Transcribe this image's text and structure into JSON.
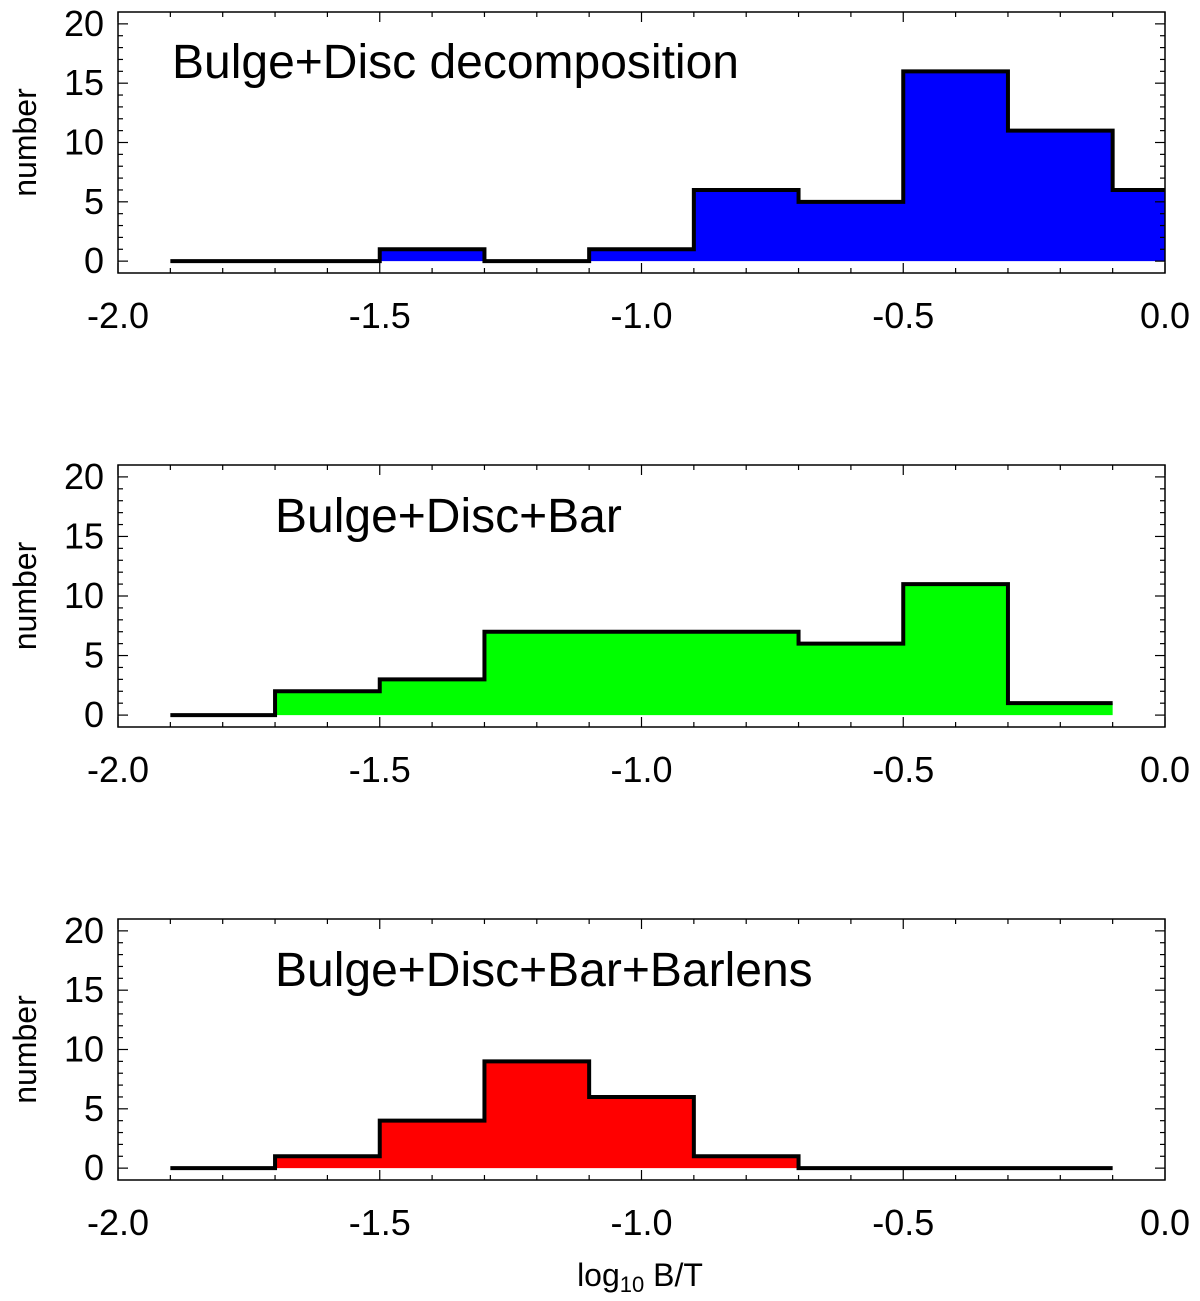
{
  "chart_data": [
    {
      "type": "histogram",
      "title": "Bulge+Disc decomposition",
      "ylabel": "number",
      "xlabel": "",
      "xlim": [
        -2.0,
        0.0
      ],
      "ylim": [
        -1,
        21
      ],
      "xticks": [
        "-2.0",
        "-1.5",
        "-1.0",
        "-0.5",
        "0.0"
      ],
      "yticks": [
        "0",
        "5",
        "10",
        "15",
        "20"
      ],
      "fill_color": "#0000ff",
      "bin_edges": [
        -1.9,
        -1.7,
        -1.5,
        -1.3,
        -1.1,
        -0.9,
        -0.7,
        -0.5,
        -0.3,
        -0.1,
        0.1
      ],
      "values": [
        0,
        0,
        1,
        0,
        1,
        6,
        5,
        16,
        11,
        6
      ]
    },
    {
      "type": "histogram",
      "title": "Bulge+Disc+Bar",
      "ylabel": "number",
      "xlabel": "",
      "xlim": [
        -2.0,
        0.0
      ],
      "ylim": [
        -1,
        21
      ],
      "xticks": [
        "-2.0",
        "-1.5",
        "-1.0",
        "-0.5",
        "0.0"
      ],
      "yticks": [
        "0",
        "5",
        "10",
        "15",
        "20"
      ],
      "fill_color": "#00ff00",
      "bin_edges": [
        -1.9,
        -1.7,
        -1.5,
        -1.3,
        -1.1,
        -0.9,
        -0.7,
        -0.5,
        -0.3,
        -0.1
      ],
      "values": [
        0,
        2,
        3,
        7,
        7,
        7,
        6,
        11,
        1
      ]
    },
    {
      "type": "histogram",
      "title": "Bulge+Disc+Bar+Barlens",
      "ylabel": "number",
      "xlabel": "log10 B/T",
      "xlim": [
        -2.0,
        0.0
      ],
      "ylim": [
        -1,
        21
      ],
      "xticks": [
        "-2.0",
        "-1.5",
        "-1.0",
        "-0.5",
        "0.0"
      ],
      "yticks": [
        "0",
        "5",
        "10",
        "15",
        "20"
      ],
      "fill_color": "#ff0000",
      "bin_edges": [
        -1.9,
        -1.7,
        -1.5,
        -1.3,
        -1.1,
        -0.9,
        -0.7,
        -0.5,
        -0.3,
        -0.1
      ],
      "values": [
        0,
        1,
        4,
        9,
        6,
        1,
        0,
        0,
        0
      ]
    }
  ],
  "xlabel_parts": {
    "prefix": "log",
    "subscript": "10",
    "suffix": " B/T"
  }
}
